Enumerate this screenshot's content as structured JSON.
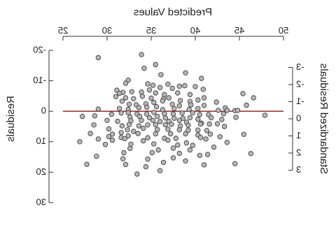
{
  "chart_data": {
    "type": "scatter",
    "mirrored": true,
    "title": "",
    "xlabel": "Predicted Values",
    "ylabel_left": "Residuals",
    "ylabel_right": "Standardized Residuals",
    "x_axis_position": "top",
    "xlim": [
      25,
      50
    ],
    "x_ticks": [
      25,
      30,
      35,
      40,
      45,
      50
    ],
    "x_tick_labels": [
      "25",
      "30",
      "35",
      "40",
      "45",
      "50"
    ],
    "ylim_left": [
      -20,
      30
    ],
    "y_left_ticks": [
      -20,
      -10,
      0,
      10,
      20,
      30
    ],
    "y_left_tick_labels": [
      "-20",
      "-10",
      "0",
      "10",
      "20",
      "30"
    ],
    "ylim_right": [
      -3,
      3
    ],
    "y_right_ticks": [
      -3,
      -2,
      -1,
      0,
      1,
      2,
      3
    ],
    "y_right_tick_labels": [
      "-3",
      "-2",
      "-1",
      "0",
      "1",
      "2",
      "3"
    ],
    "reference_line": {
      "y": 0,
      "color": "#8b1a1a"
    },
    "point_fill": "#b5b5b5",
    "point_stroke": "#3a3a3a",
    "grid": false,
    "series": [
      {
        "points": [
          [
            33.9,
            -18.6
          ],
          [
            29.0,
            -17.6
          ],
          [
            35.5,
            -15.3
          ],
          [
            34.2,
            -14.1
          ],
          [
            36.1,
            -12.0
          ],
          [
            38.9,
            -12.6
          ],
          [
            40.7,
            -10.8
          ],
          [
            32.4,
            -10.2
          ],
          [
            32.1,
            -9.2
          ],
          [
            34.6,
            -9.0
          ],
          [
            35.2,
            -8.5
          ],
          [
            36.0,
            -7.8
          ],
          [
            36.9,
            -8.9
          ],
          [
            37.4,
            -7.5
          ],
          [
            38.2,
            -8.2
          ],
          [
            38.8,
            -8.4
          ],
          [
            40.0,
            -8.1
          ],
          [
            40.9,
            -7.2
          ],
          [
            31.1,
            -6.9
          ],
          [
            31.8,
            -6.2
          ],
          [
            31.4,
            -5.9
          ],
          [
            32.8,
            -6.4
          ],
          [
            33.9,
            -6.3
          ],
          [
            34.8,
            -7.0
          ],
          [
            35.5,
            -6.0
          ],
          [
            36.5,
            -5.5
          ],
          [
            38.0,
            -6.0
          ],
          [
            39.4,
            -5.5
          ],
          [
            31.0,
            -4.8
          ],
          [
            32.1,
            -4.4
          ],
          [
            33.0,
            -4.1
          ],
          [
            34.0,
            -4.9
          ],
          [
            35.0,
            -4.3
          ],
          [
            36.4,
            -4.1
          ],
          [
            37.0,
            -4.4
          ],
          [
            38.3,
            -3.5
          ],
          [
            39.4,
            -3.2
          ],
          [
            40.3,
            -3.7
          ],
          [
            41.0,
            -4.4
          ],
          [
            42.4,
            -3.0
          ],
          [
            45.4,
            -5.8
          ],
          [
            46.6,
            -4.4
          ],
          [
            31.7,
            -3.3
          ],
          [
            32.5,
            -2.3
          ],
          [
            33.3,
            -2.1
          ],
          [
            34.4,
            -2.4
          ],
          [
            35.3,
            -2.9
          ],
          [
            36.3,
            -3.4
          ],
          [
            37.4,
            -2.3
          ],
          [
            38.2,
            -1.8
          ],
          [
            39.5,
            -2.1
          ],
          [
            41.0,
            -1.9
          ],
          [
            43.4,
            -1.1
          ],
          [
            44.5,
            -0.2
          ],
          [
            45.8,
            -2.0
          ],
          [
            29.0,
            -0.7
          ],
          [
            31.4,
            -0.9
          ],
          [
            32.4,
            -0.6
          ],
          [
            33.6,
            -1.2
          ],
          [
            34.5,
            -1.3
          ],
          [
            35.6,
            -1.5
          ],
          [
            36.3,
            -0.5
          ],
          [
            37.6,
            -0.9
          ],
          [
            39.3,
            -0.6
          ],
          [
            40.3,
            -0.9
          ],
          [
            42.6,
            -0.3
          ],
          [
            43.6,
            -0.3
          ],
          [
            44.8,
            -0.3
          ],
          [
            30.5,
            1.0
          ],
          [
            31.6,
            0.6
          ],
          [
            32.4,
            0.5
          ],
          [
            33.4,
            0.9
          ],
          [
            34.5,
            0.9
          ],
          [
            35.3,
            0.4
          ],
          [
            36.5,
            0.8
          ],
          [
            37.5,
            0.9
          ],
          [
            38.5,
            0.6
          ],
          [
            39.7,
            0.5
          ],
          [
            40.5,
            1.1
          ],
          [
            41.5,
            1.1
          ],
          [
            43.2,
            0.8
          ],
          [
            47.9,
            1.3
          ],
          [
            27.2,
            1.7
          ],
          [
            28.6,
            1.5
          ],
          [
            32.6,
            1.9
          ],
          [
            33.7,
            1.7
          ],
          [
            34.8,
            2.1
          ],
          [
            35.7,
            1.7
          ],
          [
            36.6,
            2.2
          ],
          [
            37.6,
            2.3
          ],
          [
            38.6,
            2.3
          ],
          [
            39.4,
            2.1
          ],
          [
            40.3,
            2.6
          ],
          [
            41.8,
            2.1
          ],
          [
            43.0,
            2.7
          ],
          [
            44.6,
            2.0
          ],
          [
            30.0,
            3.0
          ],
          [
            31.2,
            3.3
          ],
          [
            32.7,
            3.1
          ],
          [
            33.9,
            3.0
          ],
          [
            35.2,
            3.0
          ],
          [
            36.0,
            3.4
          ],
          [
            37.0,
            3.3
          ],
          [
            38.2,
            3.0
          ],
          [
            39.0,
            3.6
          ],
          [
            40.7,
            3.9
          ],
          [
            42.5,
            4.1
          ],
          [
            28.5,
            4.5
          ],
          [
            31.7,
            4.8
          ],
          [
            32.5,
            4.4
          ],
          [
            33.6,
            4.8
          ],
          [
            34.6,
            4.5
          ],
          [
            35.5,
            4.4
          ],
          [
            36.6,
            4.4
          ],
          [
            37.3,
            4.3
          ],
          [
            38.3,
            4.8
          ],
          [
            39.2,
            4.6
          ],
          [
            40.6,
            4.2
          ],
          [
            41.6,
            4.2
          ],
          [
            43.3,
            5.0
          ],
          [
            30.2,
            5.8
          ],
          [
            32.3,
            6.1
          ],
          [
            33.0,
            6.6
          ],
          [
            34.1,
            5.6
          ],
          [
            35.7,
            6.0
          ],
          [
            36.9,
            5.9
          ],
          [
            38.2,
            6.1
          ],
          [
            39.2,
            6.2
          ],
          [
            40.3,
            6.2
          ],
          [
            41.3,
            6.3
          ],
          [
            28.1,
            7.3
          ],
          [
            30.6,
            7.5
          ],
          [
            31.6,
            7.0
          ],
          [
            33.5,
            7.3
          ],
          [
            35.5,
            7.4
          ],
          [
            37.2,
            7.4
          ],
          [
            38.9,
            7.4
          ],
          [
            40.3,
            7.8
          ],
          [
            41.7,
            7.5
          ],
          [
            30.2,
            8.3
          ],
          [
            31.6,
            8.6
          ],
          [
            32.4,
            8.1
          ],
          [
            34.6,
            8.7
          ],
          [
            36.5,
            8.9
          ],
          [
            37.8,
            8.9
          ],
          [
            40.6,
            8.6
          ],
          [
            42.8,
            8.4
          ],
          [
            45.5,
            7.6
          ],
          [
            29.0,
            9.1
          ],
          [
            30.6,
            9.5
          ],
          [
            32.0,
            9.0
          ],
          [
            34.1,
            9.7
          ],
          [
            36.9,
            9.5
          ],
          [
            39.0,
            10.4
          ],
          [
            41.2,
            9.1
          ],
          [
            43.6,
            10.2
          ],
          [
            26.9,
            10.0
          ],
          [
            29.8,
            10.9
          ],
          [
            32.7,
            10.8
          ],
          [
            35.3,
            10.7
          ],
          [
            38.0,
            11.1
          ],
          [
            39.7,
            11.2
          ],
          [
            32.6,
            12.2
          ],
          [
            35.8,
            12.7
          ],
          [
            37.5,
            12.1
          ],
          [
            39.4,
            12.7
          ],
          [
            42.1,
            11.8
          ],
          [
            31.9,
            13.6
          ],
          [
            35.1,
            13.6
          ],
          [
            38.2,
            13.8
          ],
          [
            41.4,
            14.2
          ],
          [
            46.3,
            13.9
          ],
          [
            28.8,
            14.8
          ],
          [
            31.8,
            15.6
          ],
          [
            34.6,
            15.7
          ],
          [
            37.5,
            15.3
          ],
          [
            40.5,
            14.5
          ],
          [
            36.4,
            16.8
          ],
          [
            38.9,
            16.3
          ],
          [
            32.1,
            17.5
          ],
          [
            34.4,
            18.2
          ],
          [
            41.0,
            17.6
          ],
          [
            44.5,
            17.2
          ],
          [
            27.7,
            17.4
          ],
          [
            36.0,
            19.5
          ],
          [
            33.4,
            20.6
          ]
        ]
      }
    ]
  }
}
